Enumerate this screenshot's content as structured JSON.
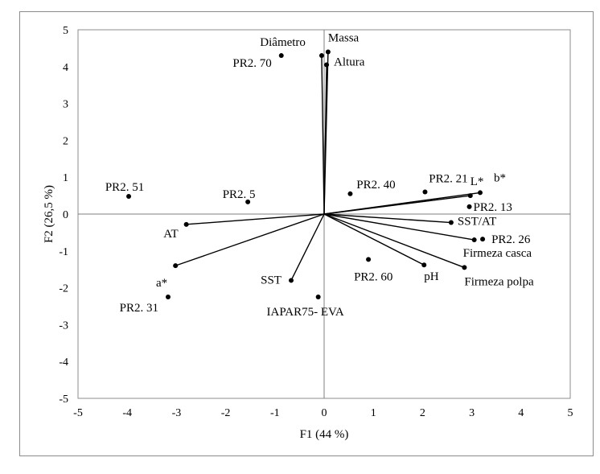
{
  "chart_data": {
    "type": "scatter",
    "subtype": "pca-biplot",
    "title": "",
    "xlabel": "F1 (44 %)",
    "ylabel": "F2 (26,5 %)",
    "xlim": [
      -5,
      5
    ],
    "ylim": [
      -5,
      5
    ],
    "xticks": [
      -5,
      -4,
      -3,
      -2,
      -1,
      0,
      1,
      2,
      3,
      4,
      5
    ],
    "yticks": [
      -5,
      -4,
      -3,
      -2,
      -1,
      0,
      1,
      2,
      3,
      4,
      5
    ],
    "grid": false,
    "colors": {
      "ink": "#000000",
      "frame": "#8c8c8c",
      "zero_axis": "#7f7f7f"
    },
    "variables": [
      {
        "name": "Diâmetro",
        "x": -0.05,
        "y": 4.3
      },
      {
        "name": "Massa",
        "x": 0.08,
        "y": 4.4
      },
      {
        "name": "Altura",
        "x": 0.05,
        "y": 4.05
      },
      {
        "name": "L*",
        "x": 2.97,
        "y": 0.5
      },
      {
        "name": "b*",
        "x": 3.17,
        "y": 0.58
      },
      {
        "name": "SST/AT",
        "x": 2.58,
        "y": -0.23
      },
      {
        "name": "Firmeza casca",
        "x": 3.05,
        "y": -0.7
      },
      {
        "name": "Firmeza polpa",
        "x": 2.85,
        "y": -1.45
      },
      {
        "name": "pH",
        "x": 2.03,
        "y": -1.38
      },
      {
        "name": "SST",
        "x": -0.67,
        "y": -1.8
      },
      {
        "name": "AT",
        "x": -2.8,
        "y": -0.28
      },
      {
        "name": "a*",
        "x": -3.02,
        "y": -1.4
      }
    ],
    "observations": [
      {
        "name": "PR2. 70",
        "x": -0.87,
        "y": 4.3
      },
      {
        "name": "PR2. 51",
        "x": -3.97,
        "y": 0.48
      },
      {
        "name": "PR2. 5",
        "x": -1.55,
        "y": 0.33
      },
      {
        "name": "PR2. 40",
        "x": 0.53,
        "y": 0.55
      },
      {
        "name": "PR2. 21",
        "x": 2.05,
        "y": 0.6
      },
      {
        "name": "PR2. 13",
        "x": 2.95,
        "y": 0.2
      },
      {
        "name": "PR2. 26",
        "x": 3.22,
        "y": -0.68
      },
      {
        "name": "PR2. 60",
        "x": 0.9,
        "y": -1.23
      },
      {
        "name": "PR2. 31",
        "x": -3.17,
        "y": -2.25
      },
      {
        "name": "IAPAR75- EVA",
        "x": -0.12,
        "y": -2.25
      }
    ]
  }
}
